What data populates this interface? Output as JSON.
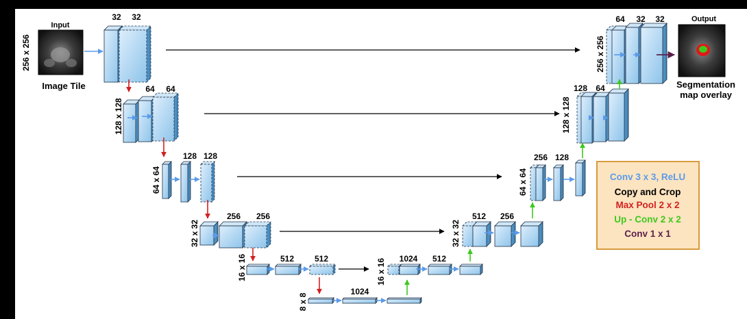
{
  "diagram": {
    "input": {
      "title": "Input",
      "caption": "Image Tile",
      "size": "256 x 256"
    },
    "output": {
      "title": "Output",
      "caption_line1": "Segmentation",
      "caption_line2": "map overlay"
    },
    "levels": {
      "l1_enc": {
        "size": "256 x 256",
        "c1": "32",
        "c2": "32"
      },
      "l2_enc": {
        "size": "128 x 128",
        "c1": "64",
        "c2": "64"
      },
      "l3_enc": {
        "size": "64 x 64",
        "c1": "128",
        "c2": "128"
      },
      "l4_enc": {
        "size": "32 x 32",
        "c1": "256",
        "c2": "256"
      },
      "l5_enc": {
        "size": "16 x 16",
        "c1": "512",
        "c2": "512"
      },
      "bottom": {
        "size": "8 x 8",
        "c1": "1024"
      },
      "l5_dec": {
        "size": "16 x 16",
        "c1": "1024",
        "c2": "512"
      },
      "l4_dec": {
        "size": "32 x 32",
        "c1": "512",
        "c2": "256"
      },
      "l3_dec": {
        "size": "64 x 64",
        "c1": "256",
        "c2": "128"
      },
      "l2_dec": {
        "size": "128 x 128",
        "c1": "128",
        "c2": "64"
      },
      "l1_dec": {
        "size": "256 x 256",
        "c1": "64",
        "c2": "32",
        "c3": "32"
      }
    },
    "legend": {
      "conv": "Conv 3 x 3, ReLU",
      "copy": "Copy and Crop",
      "pool": "Max Pool 2 x 2",
      "up": "Up - Conv 2 x 2",
      "conv1": "Conv 1 x 1"
    },
    "colors": {
      "conv": "#5b9bea",
      "copy": "#000000",
      "pool": "#d32020",
      "up": "#3ec81e",
      "conv1": "#5a1f4a",
      "legend_bg": "#fce4c0",
      "legend_border": "#d79a3c"
    }
  }
}
